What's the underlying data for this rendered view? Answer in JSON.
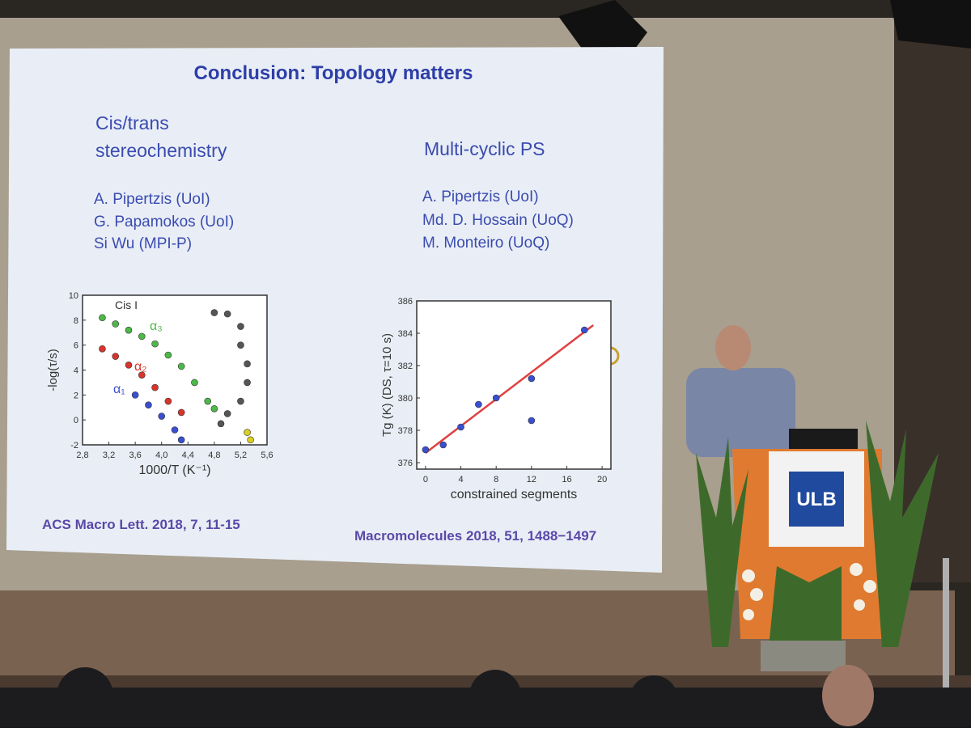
{
  "slide": {
    "title": "Conclusion: Topology matters",
    "left": {
      "heading": [
        "Cis/trans",
        "stereochemistry"
      ],
      "authors": [
        "A. Pipertzis (UoI)",
        "G. Papamokos (UoI)",
        "Si Wu (MPI-P)"
      ],
      "reference": "ACS Macro Lett. 2018, 7, 11-15"
    },
    "right": {
      "heading": "Multi-cyclic PS",
      "authors": [
        "A. Pipertzis (UoI)",
        "Md. D. Hossain (UoQ)",
        "M. Monteiro (UoQ)"
      ],
      "reference": "Macromolecules 2018, 51, 1488−1497"
    }
  },
  "podium": {
    "logo": "ULB"
  },
  "chart_data": [
    {
      "type": "scatter",
      "annotation": "Cis I",
      "xlabel": "1000/T (K⁻¹)",
      "ylabel": "-log(τ/s)",
      "xlim": [
        2.8,
        5.6
      ],
      "ylim": [
        -2,
        10
      ],
      "xticks": [
        {
          "value": 2.8,
          "label": "2,8"
        },
        {
          "value": 3.2,
          "label": "3,2"
        },
        {
          "value": 3.6,
          "label": "3,6"
        },
        {
          "value": 4.0,
          "label": "4,0"
        },
        {
          "value": 4.4,
          "label": "4,4"
        },
        {
          "value": 4.8,
          "label": "4,8"
        },
        {
          "value": 5.2,
          "label": "5,2"
        },
        {
          "value": 5.6,
          "label": "5,6"
        }
      ],
      "yticks": [
        -2,
        0,
        2,
        4,
        6,
        8,
        10
      ],
      "series": [
        {
          "name": "α₃",
          "color": "#4cb848",
          "x": [
            3.1,
            3.3,
            3.5,
            3.7,
            3.9,
            4.1,
            4.3,
            4.5,
            4.7,
            4.8
          ],
          "values": [
            8.2,
            7.7,
            7.2,
            6.7,
            6.1,
            5.2,
            4.3,
            3.0,
            1.5,
            0.9
          ]
        },
        {
          "name": "α₂",
          "color": "#d9342b",
          "x": [
            3.1,
            3.3,
            3.5,
            3.7,
            3.9,
            4.1,
            4.3
          ],
          "values": [
            5.7,
            5.1,
            4.4,
            3.6,
            2.6,
            1.5,
            0.6
          ]
        },
        {
          "name": "α₁",
          "color": "#3a4fd0",
          "x": [
            3.6,
            3.8,
            4.0,
            4.2,
            4.3
          ],
          "values": [
            2.0,
            1.2,
            0.3,
            -0.8,
            -1.6
          ]
        },
        {
          "color": "#555555",
          "x": [
            4.8,
            5.0,
            5.2,
            5.2,
            5.3,
            5.3,
            5.2,
            5.0,
            4.9
          ],
          "values": [
            8.6,
            8.5,
            7.5,
            6.0,
            4.5,
            3.0,
            1.5,
            0.5,
            -0.3
          ]
        },
        {
          "color": "#d8d020",
          "x": [
            5.3,
            5.35
          ],
          "values": [
            -1.0,
            -1.6
          ]
        }
      ]
    },
    {
      "type": "scatter",
      "xlabel": "constrained segments",
      "ylabel": "Tg (K) (DS, τ=10 s)",
      "xlim": [
        -1,
        21
      ],
      "ylim": [
        375.6,
        386
      ],
      "xticks": [
        0,
        4,
        8,
        12,
        16,
        20
      ],
      "yticks": [
        376,
        378,
        380,
        382,
        384,
        386
      ],
      "series": [
        {
          "color": "#3a4fd0",
          "x": [
            0,
            2,
            4,
            6,
            8,
            12,
            12,
            18
          ],
          "values": [
            376.8,
            377.1,
            378.2,
            379.6,
            380.0,
            381.2,
            378.6,
            384.2
          ]
        }
      ],
      "fit": {
        "color": "#e04040",
        "x": [
          0,
          19
        ],
        "values": [
          376.6,
          384.5
        ]
      }
    }
  ]
}
